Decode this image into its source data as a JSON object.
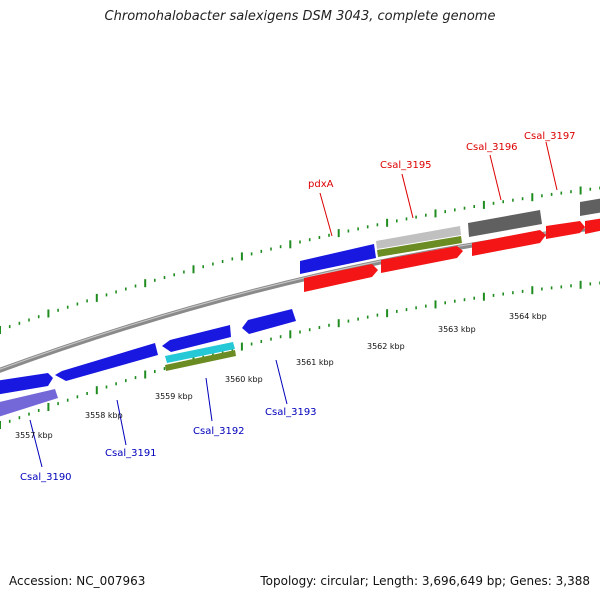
{
  "title": "Chromohalobacter salexigens DSM 3043, complete genome",
  "footer": {
    "accession": "Accession: NC_007963",
    "summary": "Topology: circular; Length: 3,696,649 bp; Genes: 3,388"
  },
  "colors": {
    "backbone": "#888888",
    "tick": "#1e8c1e",
    "forward_label": "#dd0000",
    "reverse_label": "#0000bb"
  },
  "kbp_labels": [
    "3557 kbp",
    "3558 kbp",
    "3559 kbp",
    "3560 kbp",
    "3561 kbp",
    "3562 kbp",
    "3563 kbp",
    "3564 kbp"
  ],
  "gene_labels": {
    "forward": [
      "pdxA",
      "Csal_3195",
      "Csal_3196",
      "Csal_3197"
    ],
    "reverse": [
      "Csal_3190",
      "Csal_3191",
      "Csal_3192",
      "Csal_3193"
    ]
  }
}
